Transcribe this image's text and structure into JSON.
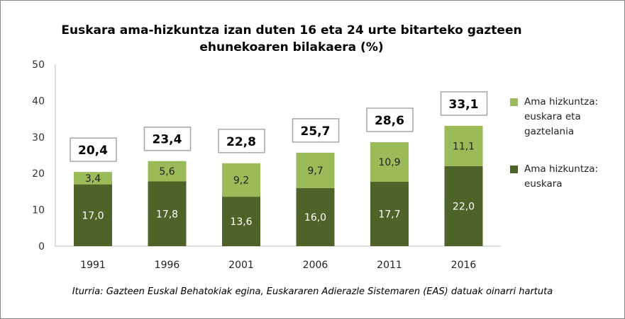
{
  "chart_data": {
    "type": "bar",
    "stacked": true,
    "title": "Euskara ama-hizkuntza izan duten 16 eta 24 urte bitarteko gazteen ehunekoaren bilakaera (%)",
    "categories": [
      "1991",
      "1996",
      "2001",
      "2006",
      "2011",
      "2016"
    ],
    "series": [
      {
        "name": "Ama hizkuntza: euskara",
        "values": [
          17.0,
          17.8,
          13.6,
          16.0,
          17.7,
          22.0
        ],
        "labels": [
          "17,0",
          "17,8",
          "13,6",
          "16,0",
          "17,7",
          "22,0"
        ],
        "color": "#4f6228"
      },
      {
        "name": "Ama hizkuntza: euskara eta gaztelania",
        "values": [
          3.4,
          5.6,
          9.2,
          9.7,
          10.9,
          11.1
        ],
        "labels": [
          "3,4",
          "5,6",
          "9,2",
          "9,7",
          "10,9",
          "11,1"
        ],
        "color": "#9bbb59"
      }
    ],
    "totals": [
      "20,4",
      "23,4",
      "22,8",
      "25,7",
      "28,6",
      "33,1"
    ],
    "ylim": [
      0,
      50
    ],
    "yticks": [
      "0",
      "10",
      "20",
      "30",
      "40",
      "50"
    ],
    "grid": false,
    "legend_position": "right",
    "source": "Iturria: Gazteen Euskal Behatokiak egina, Euskararen Adierazle Sistemaren (EAS) datuak oinarri hartuta"
  }
}
